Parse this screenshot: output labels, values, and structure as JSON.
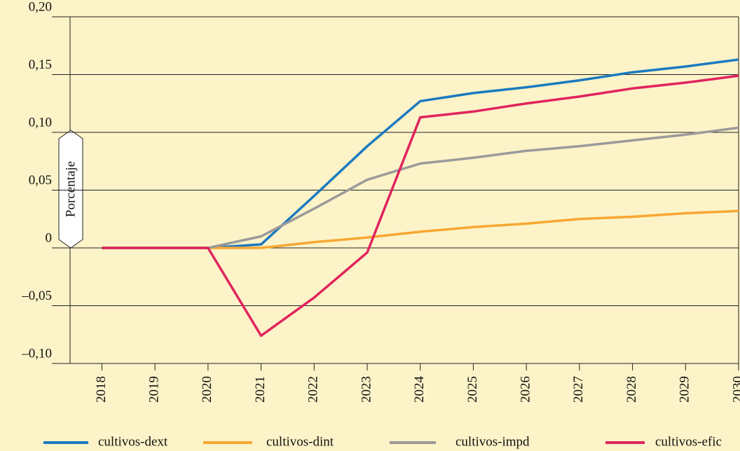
{
  "chart_data": {
    "type": "line",
    "y_label": "Porcentaje",
    "x": [
      2018,
      2019,
      2020,
      2021,
      2022,
      2023,
      2024,
      2025,
      2026,
      2027,
      2028,
      2029,
      2030
    ],
    "xlim": [
      2017.4,
      2030
    ],
    "xticks": [
      2018,
      2019,
      2020,
      2021,
      2022,
      2023,
      2024,
      2025,
      2026,
      2027,
      2028,
      2029,
      2030
    ],
    "ylim": [
      -0.1,
      0.2
    ],
    "yticks": [
      {
        "value": -0.1,
        "label": "–0,10"
      },
      {
        "value": -0.05,
        "label": "–0,05"
      },
      0,
      {
        "value": 0.05,
        "label": "0,05"
      },
      {
        "value": 0.1,
        "label": "0,10"
      },
      {
        "value": 0.15,
        "label": "0,15"
      },
      {
        "value": 0.2,
        "label": "0,20"
      }
    ],
    "grid": true,
    "legend": "bottom",
    "series": [
      {
        "name": "cultivos-dext",
        "color": "#1a7abf",
        "values": [
          0,
          0,
          0,
          0.003,
          0.045,
          0.088,
          0.127,
          0.134,
          0.139,
          0.145,
          0.152,
          0.157,
          0.163
        ]
      },
      {
        "name": "cultivos-dint",
        "color": "#f7a733",
        "values": [
          0,
          0,
          0,
          0,
          0.005,
          0.009,
          0.014,
          0.018,
          0.021,
          0.025,
          0.027,
          0.03,
          0.032
        ]
      },
      {
        "name": "cultivos-impd",
        "color": "#9a9a9a",
        "values": [
          0,
          0,
          0,
          0.01,
          0.034,
          0.059,
          0.073,
          0.078,
          0.084,
          0.088,
          0.093,
          0.098,
          0.104
        ]
      },
      {
        "name": "cultivos-efic",
        "color": "#e0245e",
        "values": [
          0,
          0,
          0,
          -0.076,
          -0.043,
          -0.004,
          0.113,
          0.118,
          0.125,
          0.131,
          0.138,
          0.143,
          0.149
        ]
      }
    ]
  }
}
